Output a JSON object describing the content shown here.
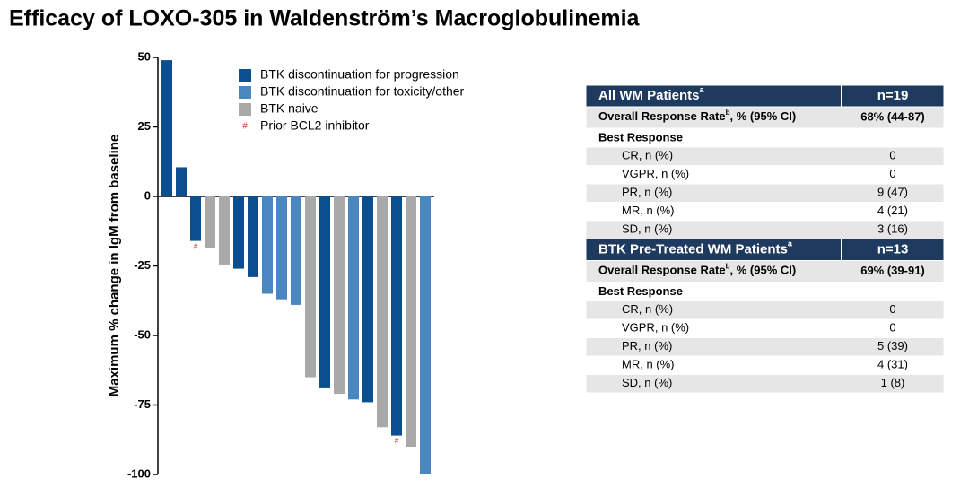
{
  "chart_data": {
    "type": "bar",
    "title": "Efficacy of LOXO-305 in Waldenström’s Macroglobulinemia",
    "y_label": "Maximum % change in IgM from baseline",
    "categories": [
      null,
      null,
      null,
      null,
      null,
      null,
      null,
      null,
      null,
      null,
      null,
      null,
      null,
      null,
      null,
      null,
      null,
      null,
      null
    ],
    "series": [
      {
        "name": "BTK discontinuation for progression",
        "color": "#0b4f8e",
        "values": [
          49,
          10.5,
          -16,
          null,
          null,
          -26,
          -29,
          null,
          null,
          null,
          null,
          -69,
          null,
          null,
          -74,
          null,
          -86,
          null,
          null
        ]
      },
      {
        "name": "BTK discontinuation for toxicity/other",
        "color": "#4a86c0",
        "values": [
          null,
          null,
          null,
          null,
          null,
          null,
          null,
          -35,
          -37,
          -39,
          null,
          null,
          null,
          -73,
          null,
          null,
          null,
          null,
          -100
        ]
      },
      {
        "name": "BTK naive",
        "color": "#a9a9a9",
        "values": [
          null,
          null,
          null,
          -18.5,
          -24.5,
          null,
          null,
          null,
          null,
          null,
          -65,
          null,
          -71,
          null,
          null,
          -83,
          null,
          -90,
          null
        ]
      }
    ],
    "marker": {
      "symbol": "#",
      "name": "Prior BCL2 inhibitor",
      "color": "#c0392b",
      "bars": [
        2,
        16
      ]
    },
    "ylim": [
      -100,
      50
    ],
    "yticks": [
      50,
      25,
      0,
      -25,
      -50,
      -75,
      -100
    ]
  },
  "table": {
    "sections": [
      {
        "header": {
          "label": "All WM Patients",
          "sup": "a",
          "n": "n=19"
        },
        "orr": {
          "label": "Overall Response Rate",
          "sup": "b",
          "rest": ", % (95% CI)",
          "value": "68% (44-87)"
        },
        "best": "Best Response",
        "rows": [
          [
            "CR, n (%)",
            "0"
          ],
          [
            "VGPR, n (%)",
            "0"
          ],
          [
            "PR, n (%)",
            "9 (47)"
          ],
          [
            "MR, n (%)",
            "4 (21)"
          ],
          [
            "SD, n (%)",
            "3 (16)"
          ]
        ]
      },
      {
        "header": {
          "label": "BTK Pre-Treated WM Patients",
          "sup": "a",
          "n": "n=13"
        },
        "orr": {
          "label": "Overall Response Rate",
          "sup": "b",
          "rest": ", % (95% CI)",
          "value": "69% (39-91)"
        },
        "best": "Best Response",
        "rows": [
          [
            "CR, n (%)",
            "0"
          ],
          [
            "VGPR, n (%)",
            "0"
          ],
          [
            "PR, n (%)",
            "5 (39)"
          ],
          [
            "MR, n (%)",
            "4 (31)"
          ],
          [
            "SD, n (%)",
            "1 (8)"
          ]
        ]
      }
    ]
  }
}
